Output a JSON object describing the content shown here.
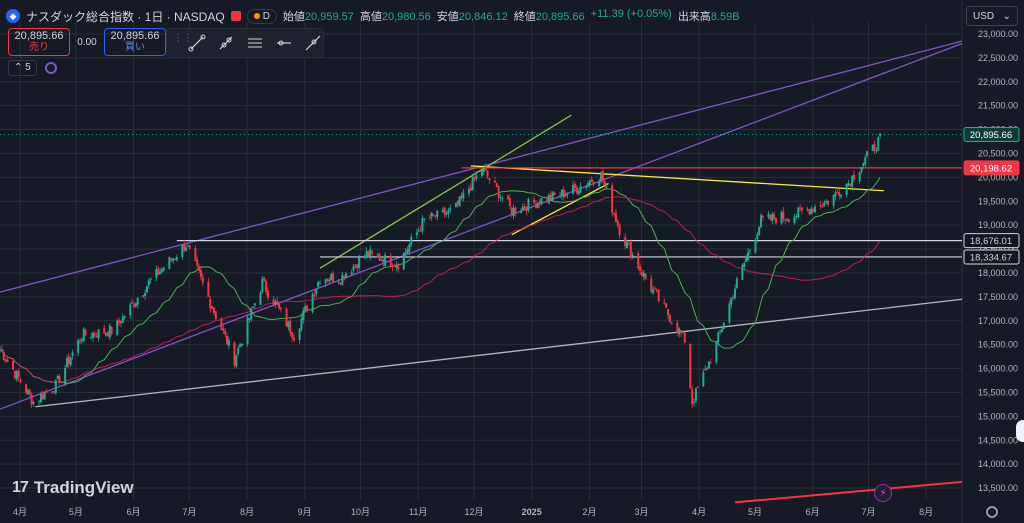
{
  "header": {
    "symbol_title": "ナスダック総合指数 · 1日 · NASDAQ",
    "pill_label": "D",
    "ohlc": [
      {
        "k": "始値",
        "v": "20,959.57"
      },
      {
        "k": "高値",
        "v": "20,980.56"
      },
      {
        "k": "安値",
        "v": "20,846.12"
      },
      {
        "k": "終値",
        "v": "20,895.66"
      },
      {
        "k": "",
        "v": "+11.39 (+0.05%)"
      },
      {
        "k": "出来高",
        "v": "8.59B"
      }
    ]
  },
  "trade": {
    "sell_price": "20,895.66",
    "sell_label": "売り",
    "spread": "0.00",
    "buy_price": "20,895.66",
    "buy_label": "買い"
  },
  "indicator": {
    "label": "5"
  },
  "currency": {
    "value": "USD"
  },
  "logo": {
    "text": "TradingView",
    "mark": "17"
  },
  "colors": {
    "up": "#22ab94",
    "down": "#f23645",
    "bg": "#161a25",
    "grid": "#2a2e39",
    "channel": "#7e57c2",
    "ma_short": "#4caf50",
    "ma_long": "#e91e63",
    "trend_yellow": "#ffeb3b",
    "trend_green": "#8bc34a",
    "support": "#b2b5be",
    "level_red": "#f23645",
    "level_white": "#d1d4dc"
  },
  "chart_data": {
    "type": "candlestick",
    "y_range": [
      13250,
      23250
    ],
    "yticks": [
      "13,500.00",
      "14,000.00",
      "14,500.00",
      "15,000.00",
      "15,500.00",
      "16,000.00",
      "16,500.00",
      "17,000.00",
      "17,500.00",
      "18,000.00",
      "18,500.00",
      "19,000.00",
      "19,500.00",
      "20,000.00",
      "20,500.00",
      "21,000.00",
      "21,500.00",
      "22,000.00",
      "22,500.00",
      "23,000.00"
    ],
    "xticks": [
      "4月",
      "5月",
      "6月",
      "7月",
      "8月",
      "9月",
      "10月",
      "11月",
      "12月",
      "2025",
      "2月",
      "3月",
      "4月",
      "5月",
      "6月",
      "7月",
      "8月"
    ],
    "date_start": "2024-04-01",
    "date_end": "2025-08-31",
    "price_labels": [
      {
        "value": 20895.66,
        "text": "20,895.66",
        "style": "last"
      },
      {
        "value": 20198.62,
        "text": "20,198.62",
        "style": "red"
      },
      {
        "value": 18676.01,
        "text": "18,676.01",
        "style": "white"
      },
      {
        "value": 18334.67,
        "text": "18,334.67",
        "style": "white"
      }
    ],
    "horizontal_levels": [
      {
        "value": 20198.62,
        "from": "2024-12-05",
        "color": "level_red"
      },
      {
        "value": 18676.01,
        "from": "2024-07-05",
        "color": "level_white"
      },
      {
        "value": 18334.67,
        "from": "2024-09-20",
        "color": "level_white"
      }
    ],
    "trend_lines": [
      {
        "name": "channel-upper",
        "color": "channel",
        "p1": [
          "2024-04-01",
          17600
        ],
        "p2": [
          "2025-08-31",
          22850
        ]
      },
      {
        "name": "channel-lower",
        "color": "channel",
        "p1": [
          "2024-04-01",
          15150
        ],
        "p2": [
          "2025-08-31",
          22800
        ]
      },
      {
        "name": "support-long",
        "color": "support",
        "p1": [
          "2024-04-20",
          15200
        ],
        "p2": [
          "2025-08-31",
          17450
        ]
      },
      {
        "name": "resistance-yellow",
        "color": "trend_yellow",
        "p1": [
          "2024-12-10",
          20240
        ],
        "p2": [
          "2025-07-20",
          19720
        ]
      },
      {
        "name": "wedge-yellow",
        "color": "trend_yellow",
        "p1": [
          "2025-01-01",
          18800
        ],
        "p2": [
          "2025-02-22",
          19870
        ]
      },
      {
        "name": "up-green",
        "color": "trend_green",
        "p1": [
          "2024-09-20",
          18100
        ],
        "p2": [
          "2025-02-02",
          21300
        ]
      },
      {
        "name": "bottom-red",
        "color": "level_red",
        "p1": [
          "2025-05-01",
          13200
        ],
        "p2": [
          "2025-08-31",
          13630
        ]
      }
    ],
    "series": [
      {
        "name": "close",
        "points": [
          [
            "2024-04-01",
            16400
          ],
          [
            "2024-04-19",
            15300
          ],
          [
            "2024-05-01",
            15650
          ],
          [
            "2024-05-15",
            16700
          ],
          [
            "2024-06-01",
            16800
          ],
          [
            "2024-06-20",
            17800
          ],
          [
            "2024-07-10",
            18600
          ],
          [
            "2024-07-25",
            17200
          ],
          [
            "2024-08-05",
            16200
          ],
          [
            "2024-08-20",
            17800
          ],
          [
            "2024-09-06",
            16700
          ],
          [
            "2024-09-20",
            17900
          ],
          [
            "2024-10-01",
            17900
          ],
          [
            "2024-10-15",
            18400
          ],
          [
            "2024-11-01",
            18200
          ],
          [
            "2024-11-15",
            19100
          ],
          [
            "2024-12-01",
            19300
          ],
          [
            "2024-12-16",
            20180
          ],
          [
            "2025-01-01",
            19300
          ],
          [
            "2025-01-15",
            19500
          ],
          [
            "2025-02-01",
            19700
          ],
          [
            "2025-02-18",
            20050
          ],
          [
            "2025-03-01",
            18800
          ],
          [
            "2025-03-15",
            17800
          ],
          [
            "2025-04-04",
            16600
          ],
          [
            "2025-04-08",
            15300
          ],
          [
            "2025-04-20",
            16400
          ],
          [
            "2025-05-01",
            17700
          ],
          [
            "2025-05-15",
            19100
          ],
          [
            "2025-06-01",
            19200
          ],
          [
            "2025-06-20",
            19500
          ],
          [
            "2025-07-01",
            19900
          ],
          [
            "2025-07-20",
            20900
          ]
        ]
      }
    ]
  }
}
